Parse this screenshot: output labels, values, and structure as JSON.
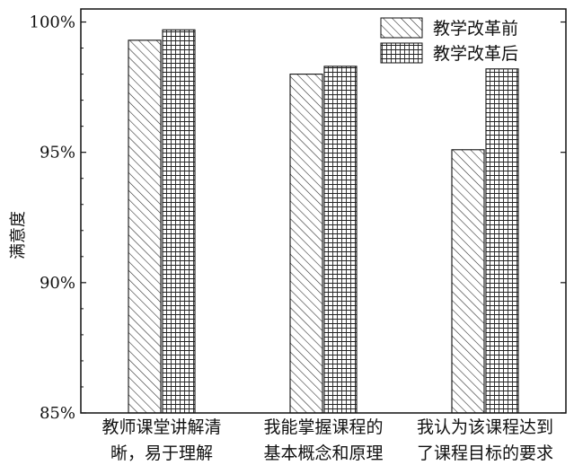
{
  "chart_data": {
    "type": "bar",
    "categories": [
      [
        "教师课堂讲解清",
        "晰，易于理解"
      ],
      [
        "我能掌握课程的",
        "基本概念和原理"
      ],
      [
        "我认为该课程达到",
        "了课程目标的要求"
      ]
    ],
    "series": [
      {
        "name": "教学改革前",
        "values": [
          99.3,
          98.0,
          95.1
        ],
        "pattern": "diagonal-hatch"
      },
      {
        "name": "教学改革后",
        "values": [
          99.7,
          98.3,
          98.2
        ],
        "pattern": "grid-hatch"
      }
    ],
    "title": "",
    "xlabel": "",
    "ylabel": "满意度",
    "ylim": [
      85,
      100.5
    ],
    "yticks": [
      85,
      90,
      95,
      100
    ],
    "ytick_labels": [
      "85%",
      "90%",
      "95%",
      "100%"
    ],
    "legend_position": "top-right",
    "grid": false,
    "colors": {
      "axis": "#111111",
      "bar_fill": "#ffffff",
      "hatch": "#222222"
    }
  }
}
